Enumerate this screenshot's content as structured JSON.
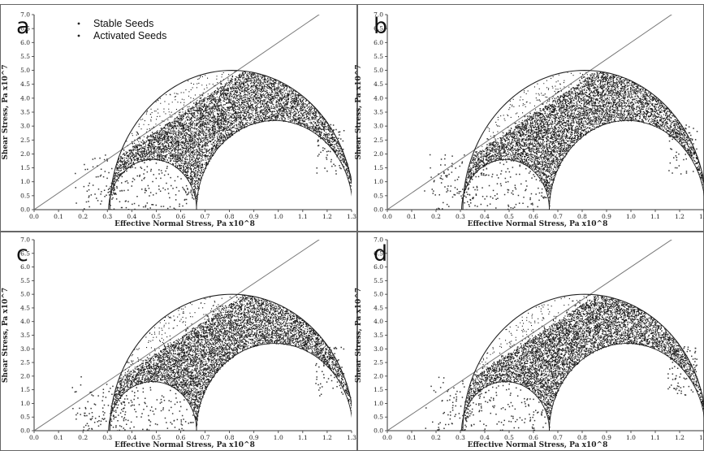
{
  "chart_data": [
    {
      "type": "scatter",
      "panel_label": "a",
      "legend": [
        "Stable Seeds",
        "Activated Seeds"
      ],
      "legend_position": "top-left",
      "xlabel": "Effective Normal Stress, Pa x10^8",
      "ylabel": "Shear Stress, Pa x10^7",
      "xlim": [
        0.0,
        1.3
      ],
      "ylim": [
        0.0,
        7.0
      ],
      "xticks": [
        "0.0",
        "0.1",
        "0.2",
        "0.3",
        "0.4",
        "0.5",
        "0.6",
        "0.7",
        "0.8",
        "0.9",
        "1.0",
        "1.1",
        "1.2",
        "1.3"
      ],
      "yticks": [
        "0.0",
        "0.5",
        "1.0",
        "1.5",
        "2.0",
        "2.5",
        "3.0",
        "3.5",
        "4.0",
        "4.5",
        "5.0",
        "5.5",
        "6.0",
        "6.5",
        "7.0"
      ],
      "failure_line": {
        "slope_per_unit_x": 6.0
      },
      "mohr_circles": [
        {
          "center": 0.81,
          "radius": 0.5
        },
        {
          "center": 0.485,
          "radius": 0.18
        },
        {
          "center": 0.985,
          "radius": 0.32
        }
      ],
      "stable_seeds": 7000,
      "activated_seeds": 450,
      "seed": 11
    },
    {
      "type": "scatter",
      "panel_label": "b",
      "xlabel": "Effective Normal Stress, Pa x10^8",
      "ylabel": "Shear Stress, Pa x10^7",
      "xlim": [
        0.0,
        1.3
      ],
      "ylim": [
        0.0,
        7.0
      ],
      "xticks": [
        "0.0",
        "0.1",
        "0.2",
        "0.3",
        "0.4",
        "0.5",
        "0.6",
        "0.7",
        "0.8",
        "0.9",
        "1.0",
        "1.1",
        "1.2",
        "1.3"
      ],
      "yticks": [
        "0.0",
        "0.5",
        "1.0",
        "1.5",
        "2.0",
        "2.5",
        "3.0",
        "3.5",
        "4.0",
        "4.5",
        "5.0",
        "5.5",
        "6.0",
        "6.5",
        "7.0"
      ],
      "failure_line": {
        "slope_per_unit_x": 6.0
      },
      "mohr_circles": [
        {
          "center": 0.81,
          "radius": 0.5
        },
        {
          "center": 0.485,
          "radius": 0.18
        },
        {
          "center": 0.985,
          "radius": 0.32
        }
      ],
      "stable_seeds": 7000,
      "activated_seeds": 450,
      "seed": 23
    },
    {
      "type": "scatter",
      "panel_label": "c",
      "xlabel": "Effective Normal Stress, Pa x10^8",
      "ylabel": "Shear Stress, Pa x10^7",
      "xlim": [
        0.0,
        1.3
      ],
      "ylim": [
        0.0,
        7.0
      ],
      "xticks": [
        "0.0",
        "0.1",
        "0.2",
        "0.3",
        "0.4",
        "0.5",
        "0.6",
        "0.7",
        "0.8",
        "0.9",
        "1.0",
        "1.1",
        "1.2",
        "1.3"
      ],
      "yticks": [
        "0.0",
        "0.5",
        "1.0",
        "1.5",
        "2.0",
        "2.5",
        "3.0",
        "3.5",
        "4.0",
        "4.5",
        "5.0",
        "5.5",
        "6.0",
        "6.5",
        "7.0"
      ],
      "failure_line": {
        "slope_per_unit_x": 6.0
      },
      "mohr_circles": [
        {
          "center": 0.81,
          "radius": 0.5
        },
        {
          "center": 0.485,
          "radius": 0.18
        },
        {
          "center": 0.985,
          "radius": 0.32
        }
      ],
      "stable_seeds": 7000,
      "activated_seeds": 450,
      "seed": 37
    },
    {
      "type": "scatter",
      "panel_label": "d",
      "xlabel": "Effective Normal Stress, Pa x10^8",
      "ylabel": "Shear Stress, Pa x10^7",
      "xlim": [
        0.0,
        1.3
      ],
      "ylim": [
        0.0,
        7.0
      ],
      "xticks": [
        "0.0",
        "0.1",
        "0.2",
        "0.3",
        "0.4",
        "0.5",
        "0.6",
        "0.7",
        "0.8",
        "0.9",
        "1.0",
        "1.1",
        "1.2",
        "1.3"
      ],
      "yticks": [
        "0.0",
        "0.5",
        "1.0",
        "1.5",
        "2.0",
        "2.5",
        "3.0",
        "3.5",
        "4.0",
        "4.5",
        "5.0",
        "5.5",
        "6.0",
        "6.5",
        "7.0"
      ],
      "failure_line": {
        "slope_per_unit_x": 6.0
      },
      "mohr_circles": [
        {
          "center": 0.81,
          "radius": 0.5
        },
        {
          "center": 0.485,
          "radius": 0.18
        },
        {
          "center": 0.985,
          "radius": 0.32
        }
      ],
      "stable_seeds": 7000,
      "activated_seeds": 450,
      "seed": 53
    }
  ]
}
